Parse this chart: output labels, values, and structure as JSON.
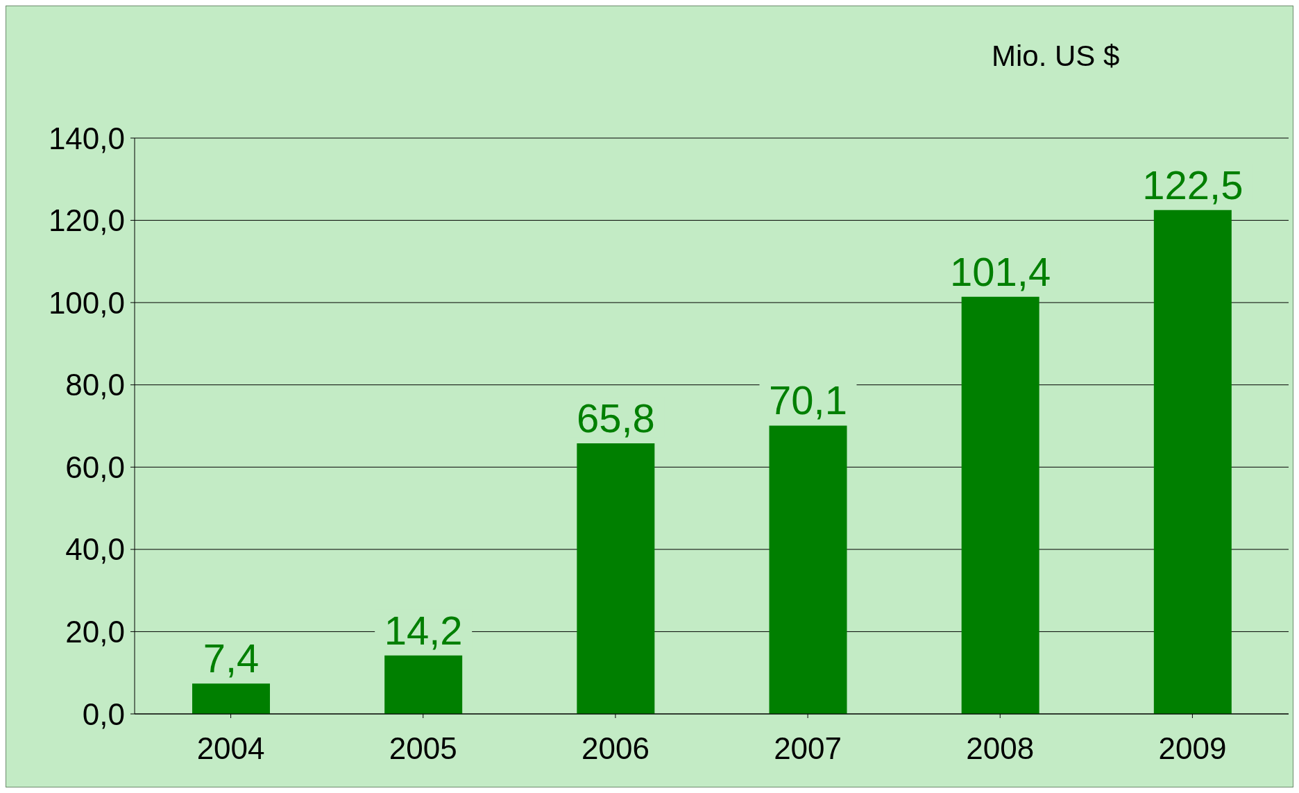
{
  "chart_data": {
    "type": "bar",
    "ylabel": "Mio. US $",
    "categories": [
      "2004",
      "2005",
      "2006",
      "2007",
      "2008",
      "2009"
    ],
    "values": [
      7.4,
      14.2,
      65.8,
      70.1,
      101.4,
      122.5
    ],
    "value_labels": [
      "7,4",
      "14,2",
      "65,8",
      "70,1",
      "101,4",
      "122,5"
    ],
    "color": "#007f00",
    "ylim": [
      0,
      140
    ],
    "yticks": [
      {
        "value": 0,
        "label": "0,0"
      },
      {
        "value": 20,
        "label": "20,0"
      },
      {
        "value": 40,
        "label": "40,0"
      },
      {
        "value": 60,
        "label": "60,0"
      },
      {
        "value": 80,
        "label": "80,0"
      },
      {
        "value": 100,
        "label": "100,0"
      },
      {
        "value": 120,
        "label": "120,0"
      },
      {
        "value": 140,
        "label": "140,0"
      }
    ],
    "grid": "y",
    "legend": false
  }
}
